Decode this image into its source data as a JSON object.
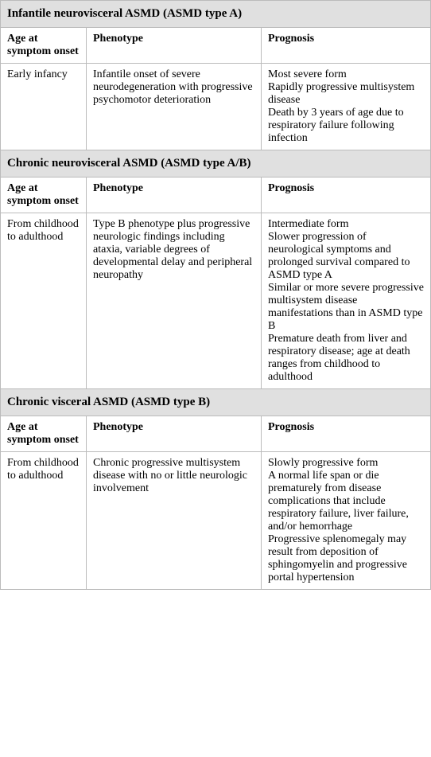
{
  "columns": {
    "age": "Age at symptom onset",
    "phenotype": "Phenotype",
    "prognosis": "Prognosis"
  },
  "sections": [
    {
      "title": "Infantile neurovisceral ASMD (ASMD type A)",
      "age": "Early infancy",
      "phenotype": "Infantile onset of severe neurodegeneration with progressive psychomotor deterioration",
      "prognosis": [
        "Most severe form",
        "Rapidly progressive multisystem disease",
        "Death by 3 years of age due to respiratory failure following infection"
      ]
    },
    {
      "title": "Chronic neurovisceral ASMD (ASMD type A/B)",
      "age": "From childhood to adulthood",
      "phenotype": "Type B phenotype plus progressive neurologic findings including ataxia, variable degrees of developmental delay and peripheral neuropathy",
      "prognosis": [
        "Intermediate form",
        "Slower progression of neurological symptoms and prolonged survival compared to ASMD type A",
        "Similar or more severe progressive multisystem disease manifestations than in ASMD type B",
        "Premature death from liver and respiratory disease; age at death ranges from childhood to adulthood"
      ]
    },
    {
      "title": "Chronic visceral ASMD (ASMD type B)",
      "age": "From childhood to adulthood",
      "phenotype": "Chronic progressive multisystem disease with no or little neurologic involvement",
      "prognosis": [
        "Slowly progressive form",
        "A normal life span or die prematurely from disease complications that include respiratory failure, liver failure, and/or hemorrhage",
        "Progressive splenomegaly may result from deposition of sphingomyelin and progressive portal hypertension"
      ]
    }
  ]
}
